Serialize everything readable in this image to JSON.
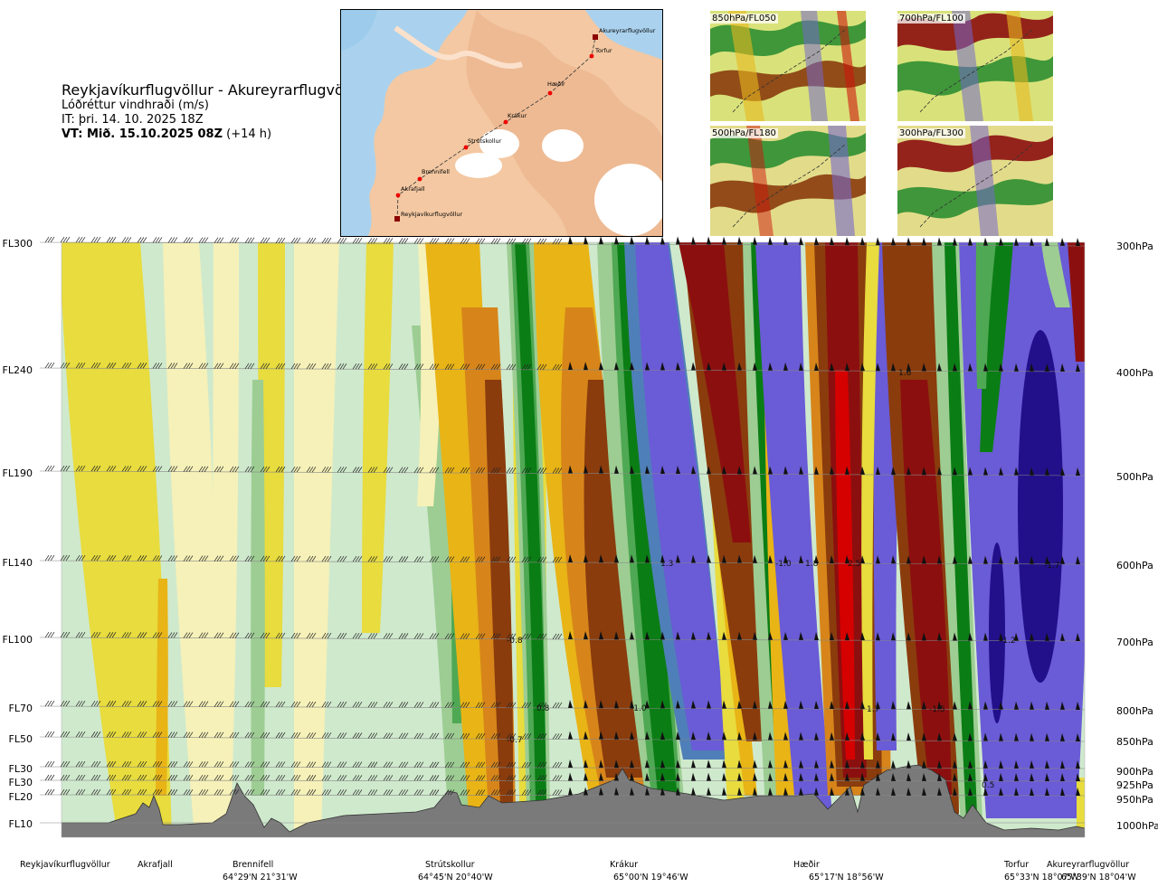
{
  "title": {
    "route": "Reykjavíkurflugvöllur - Akureyrarflugvöllur",
    "variable": "Lóðréttur vindhraði (m/s)",
    "it": "IT: þri. 14. 10. 2025 18Z",
    "vt_bold": "VT: Mið. 15.10.2025 08Z",
    "vt_lead": " (+14 h)"
  },
  "map": {
    "stations": [
      "Akureyrarflugvöllur",
      "Torfur",
      "Hæðir",
      "Krákur",
      "Strútskollur",
      "Brennifell",
      "Akrafjall",
      "Reykjavíkurflugvöllur"
    ]
  },
  "thumbnails": [
    "850hPa/FL050",
    "700hPa/FL100",
    "500hPa/FL180",
    "300hPa/FL300"
  ],
  "colors": {
    "strong_down": "#22108a",
    "down": "#6a5bd6",
    "down_light": "#4f7fb8",
    "green_dark": "#0b7d15",
    "green": "#4fa853",
    "green_light": "#9dcd93",
    "green_pale": "#cfe9cd",
    "cream": "#f6f1b8",
    "yellow": "#e8dc3e",
    "gold": "#e9b416",
    "orange": "#d7851a",
    "brown": "#8a3c0d",
    "dark_red": "#8c0f0f",
    "red": "#d50000",
    "terrain": "#7a7a7a"
  },
  "chart_data": {
    "type": "heatmap",
    "title": "Lóðréttur vindhraði (m/s)",
    "flight_levels": [
      "FL300",
      "FL240",
      "FL190",
      "FL140",
      "FL100",
      "FL70",
      "FL50",
      "FL30",
      "FL30",
      "FL20",
      "FL10"
    ],
    "pressure_levels": [
      "300hPa",
      "400hPa",
      "500hPa",
      "600hPa",
      "700hPa",
      "800hPa",
      "850hPa",
      "900hPa",
      "925hPa",
      "950hPa",
      "1000hPa"
    ],
    "stations_bottom": [
      {
        "name": "Reykjavíkurflugvöllur",
        "coord": ""
      },
      {
        "name": "Akrafjall",
        "coord": ""
      },
      {
        "name": "Brennifell",
        "coord": "64°29'N 21°31'W"
      },
      {
        "name": "Strútskollur",
        "coord": "64°45'N 20°40'W"
      },
      {
        "name": "Krákur",
        "coord": "65°00'N 19°46'W"
      },
      {
        "name": "Hæðir",
        "coord": "65°17'N 18°56'W"
      },
      {
        "name": "Torfur",
        "coord": "65°33'N 18°07'W"
      },
      {
        "name": "Akureyrarflugvöllur",
        "coord": "65°39'N 18°04'W"
      }
    ],
    "annotations": [
      {
        "text": "1.6",
        "level": "400hPa"
      },
      {
        "text": "1.3",
        "level": "600hPa"
      },
      {
        "text": "-1.0",
        "level": "600hPa"
      },
      {
        "text": "1.8",
        "level": "600hPa"
      },
      {
        "text": "2.5",
        "level": "600hPa"
      },
      {
        "text": "-1.7",
        "level": "600hPa"
      },
      {
        "text": "-0.8",
        "level": "700hPa"
      },
      {
        "text": "-1.2",
        "level": "700hPa"
      },
      {
        "text": "0.8",
        "level": "800hPa"
      },
      {
        "text": "-1.0",
        "level": "800hPa"
      },
      {
        "text": "1.7",
        "level": "800hPa"
      },
      {
        "text": "-1.5",
        "level": "800hPa"
      },
      {
        "text": "-0.7",
        "level": "850hPa"
      },
      {
        "text": "0.5",
        "level": "925hPa"
      }
    ]
  }
}
